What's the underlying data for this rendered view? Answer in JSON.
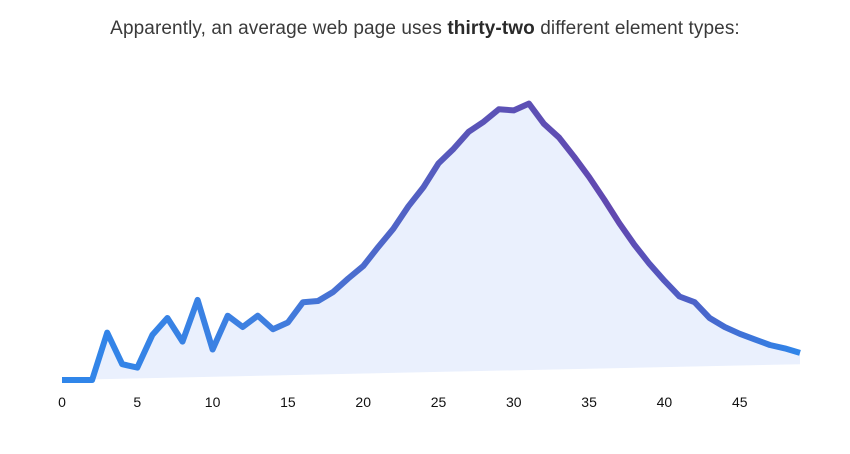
{
  "caption": {
    "prefix": "Apparently, an average web page uses",
    "highlight": "thirty-two",
    "suffix": "different element types:"
  },
  "colors": {
    "line_start": "#2f86ea",
    "line_end": "#6148b0",
    "fill": "#eaf0fd",
    "text": "#3a3a3a",
    "tick_text": "#111111"
  },
  "chart_data": {
    "type": "line",
    "title": "Apparently, an average web page uses thirty-two different element types:",
    "xlabel": "",
    "ylabel": "",
    "xlim": [
      0,
      49
    ],
    "ylim": [
      0,
      100
    ],
    "x_ticks": [
      0,
      5,
      10,
      15,
      20,
      25,
      30,
      35,
      40,
      45
    ],
    "x_tick_labels": [
      "0",
      "5",
      "10",
      "15",
      "20",
      "25",
      "30",
      "35",
      "40",
      "45"
    ],
    "baseline": {
      "start": 0,
      "end": 5.6
    },
    "x": [
      0,
      1,
      2,
      3,
      4,
      5,
      6,
      7,
      8,
      9,
      10,
      11,
      12,
      13,
      14,
      15,
      16,
      17,
      18,
      19,
      20,
      21,
      22,
      23,
      24,
      25,
      26,
      27,
      28,
      29,
      30,
      31,
      32,
      33,
      34,
      35,
      36,
      37,
      38,
      39,
      40,
      41,
      42,
      43,
      44,
      45,
      46,
      47,
      48,
      49
    ],
    "y": [
      0,
      0,
      0,
      16.8,
      5.6,
      4.4,
      16,
      22,
      13.6,
      28.4,
      10.8,
      22.8,
      18.8,
      22.8,
      18,
      20.4,
      27.6,
      28,
      31.2,
      36,
      40.4,
      47.2,
      53.6,
      61.6,
      68.4,
      76.8,
      82,
      88,
      91.6,
      96,
      95.6,
      98,
      90.8,
      86,
      79.2,
      72,
      64,
      55.6,
      48,
      41.2,
      35.2,
      29.6,
      27.6,
      22,
      18.8,
      16.4,
      14.4,
      12.4,
      11.2,
      9.6
    ]
  }
}
